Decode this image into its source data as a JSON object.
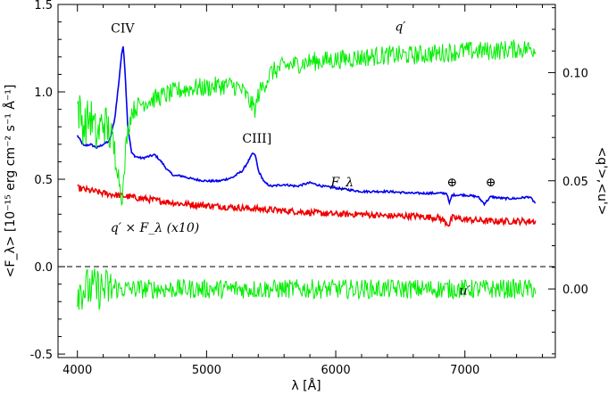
{
  "chart_data": {
    "type": "line",
    "xlabel": "λ [Å]",
    "ylabel_left": "<F_λ> [10⁻¹⁵ erg cm⁻² s⁻¹ Å⁻¹]",
    "ylabel_right": "<q'>,<u'>",
    "xlim": [
      3850,
      7700
    ],
    "ylim_left": [
      -0.52,
      1.5
    ],
    "ylim_right": [
      -0.0317,
      0.1315
    ],
    "x_ticks": [
      4000,
      5000,
      6000,
      7000
    ],
    "y_ticks_left": [
      -0.5,
      0.0,
      0.5,
      1.0,
      1.5
    ],
    "y_tick_labels_left": [
      "-0.5",
      "0.0",
      "0.5",
      "1.0",
      "1.5"
    ],
    "y_ticks_right": [
      0.0,
      0.05,
      0.1
    ],
    "y_tick_labels_right": [
      "0.00",
      "0.05",
      "0.10"
    ],
    "zero_line": true,
    "series": [
      {
        "name": "F_λ",
        "axis": "left",
        "color": "#0000ee",
        "x": [
          4000,
          4050,
          4100,
          4150,
          4200,
          4250,
          4290,
          4320,
          4340,
          4355,
          4370,
          4390,
          4420,
          4450,
          4500,
          4550,
          4600,
          4650,
          4700,
          4750,
          4800,
          4900,
          5000,
          5100,
          5200,
          5280,
          5320,
          5360,
          5380,
          5400,
          5450,
          5500,
          5600,
          5700,
          5800,
          5900,
          6000,
          6200,
          6400,
          6600,
          6800,
          6860,
          6880,
          6900,
          7000,
          7100,
          7150,
          7200,
          7300,
          7400,
          7500,
          7550
        ],
        "y": [
          0.75,
          0.69,
          0.7,
          0.68,
          0.7,
          0.72,
          0.85,
          1.05,
          1.2,
          1.27,
          1.1,
          0.8,
          0.65,
          0.63,
          0.62,
          0.63,
          0.64,
          0.6,
          0.55,
          0.52,
          0.52,
          0.5,
          0.49,
          0.49,
          0.51,
          0.55,
          0.6,
          0.65,
          0.63,
          0.55,
          0.48,
          0.46,
          0.47,
          0.46,
          0.48,
          0.46,
          0.45,
          0.43,
          0.43,
          0.42,
          0.42,
          0.42,
          0.36,
          0.41,
          0.41,
          0.4,
          0.36,
          0.4,
          0.39,
          0.39,
          0.4,
          0.36
        ]
      },
      {
        "name": "q′ × F_λ (x10)",
        "axis": "left",
        "color": "#ee0000",
        "x": [
          4000,
          4200,
          4400,
          4600,
          4800,
          5000,
          5200,
          5400,
          5600,
          5800,
          6000,
          6200,
          6400,
          6600,
          6800,
          6880,
          6900,
          7000,
          7200,
          7400,
          7550
        ],
        "y": [
          0.45,
          0.42,
          0.4,
          0.38,
          0.36,
          0.35,
          0.34,
          0.33,
          0.32,
          0.31,
          0.3,
          0.3,
          0.29,
          0.29,
          0.28,
          0.24,
          0.28,
          0.27,
          0.26,
          0.26,
          0.26
        ]
      },
      {
        "name": "q′",
        "axis": "right",
        "color": "#00ee00",
        "noise": 0.0045,
        "x": [
          4000,
          4050,
          4100,
          4150,
          4200,
          4250,
          4300,
          4330,
          4345,
          4360,
          4380,
          4420,
          4500,
          4600,
          4700,
          4800,
          4900,
          5000,
          5100,
          5200,
          5250,
          5300,
          5350,
          5380,
          5400,
          5450,
          5500,
          5600,
          5800,
          6000,
          6200,
          6400,
          6600,
          6800,
          7000,
          7200,
          7400,
          7550
        ],
        "y": [
          0.085,
          0.075,
          0.08,
          0.07,
          0.078,
          0.072,
          0.06,
          0.048,
          0.042,
          0.05,
          0.07,
          0.082,
          0.086,
          0.088,
          0.09,
          0.092,
          0.093,
          0.093,
          0.094,
          0.094,
          0.093,
          0.09,
          0.085,
          0.083,
          0.09,
          0.095,
          0.1,
          0.103,
          0.105,
          0.106,
          0.107,
          0.108,
          0.108,
          0.109,
          0.11,
          0.11,
          0.111,
          0.111
        ]
      },
      {
        "name": "u′",
        "axis": "right",
        "color": "#00ee00",
        "noise": 0.0045,
        "x": [
          4000,
          4100,
          4200,
          4400,
          4600,
          5000,
          6000,
          7000,
          7550
        ],
        "y": [
          0.0,
          0.0,
          0.0,
          0.0,
          0.0,
          0.0,
          0.0,
          0.0,
          0.0
        ]
      }
    ],
    "annotations": [
      {
        "text": "CIV",
        "x": 4350,
        "y": 1.34,
        "style": "normal"
      },
      {
        "text": "CIII]",
        "x": 5390,
        "y": 0.71,
        "style": "normal"
      },
      {
        "text": "F_λ",
        "x": 6050,
        "y": 0.46,
        "style": "italic"
      },
      {
        "text": "q′ × F_λ (x10)",
        "x": 4600,
        "y": 0.2,
        "style": "italic"
      },
      {
        "text": "q′",
        "x": 6500,
        "y": 1.35,
        "style": "italic"
      },
      {
        "text": "u′",
        "x": 7000,
        "y": -0.16,
        "style": "italic"
      },
      {
        "text": "⊕",
        "x": 6900,
        "y": 0.46,
        "style": "normal"
      },
      {
        "text": "⊕",
        "x": 7200,
        "y": 0.46,
        "style": "normal"
      }
    ]
  }
}
